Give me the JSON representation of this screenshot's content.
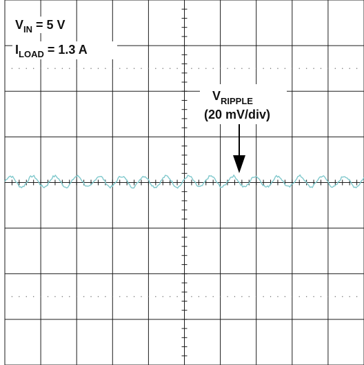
{
  "chart_data": {
    "type": "line",
    "annotations": {
      "vin": {
        "prefix": "V",
        "sub": "IN",
        "suffix": " = 5 V"
      },
      "iload": {
        "prefix": "I",
        "sub": "LOAD",
        "suffix": " = 1.3 A"
      },
      "vripple": {
        "prefix": "V",
        "sub": "RIPPLE",
        "scale": "(20 mV/div)"
      }
    },
    "divisions": {
      "x": 10,
      "y": 8
    },
    "ylim_div": [
      -4,
      4
    ],
    "series": [
      {
        "color": "#7fc8cc",
        "samples_per_div": 32,
        "period_div": 0.62,
        "amplitude_div": 0.12,
        "noise_div": 0.05,
        "offset_div": 0.02
      }
    ],
    "grid": true
  }
}
